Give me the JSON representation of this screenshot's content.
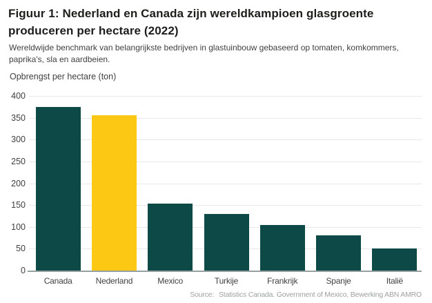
{
  "figure": {
    "title": "Figuur 1: Nederland en Canada zijn wereldkampioen glasgroente produceren per hectare (2022)",
    "subtitle": "Wereldwijde benchmark van belangrijkste bedrijven in glastuinbouw gebaseerd op tomaten, komkommers, paprika's, sla en aardbeien.",
    "source_label": "Source:",
    "source_text": "Statistics Canada. Government of Mexico, Bewerking ABN AMRO"
  },
  "chart_data": {
    "type": "bar",
    "title": "",
    "xlabel": "",
    "ylabel": "Opbrengst per hectare (ton)",
    "categories": [
      "Canada",
      "Nederland",
      "Mexico",
      "Turkije",
      "Frankrijk",
      "Spanje",
      "Italië"
    ],
    "values": [
      375,
      355,
      154,
      129,
      105,
      81,
      51
    ],
    "ylim": [
      0,
      400
    ],
    "ytick_step": 50,
    "grid": true,
    "legend": false,
    "bar_color": "#0d4a47",
    "highlight_color": "#fdc813",
    "highlight_category": "Nederland"
  }
}
